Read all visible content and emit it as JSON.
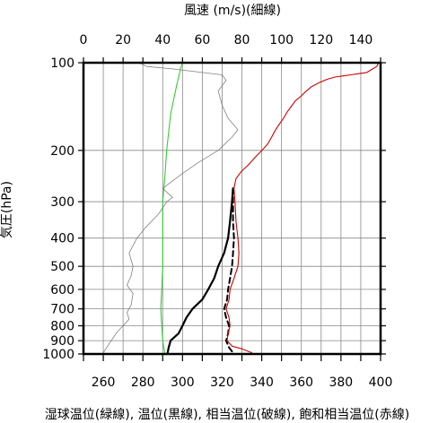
{
  "chart_data": {
    "type": "line",
    "title_top": "風速 (m/s)(細線)",
    "ylabel": "気圧(hPa)",
    "xlabel": "湿球温位(緑線), 温位(黒線), 相当温位(破線), 飽和相当温位(赤線)",
    "x_top_ticks": [
      "0",
      "20",
      "40",
      "60",
      "80",
      "100",
      "120",
      "140"
    ],
    "x_bottom_ticks": [
      "260",
      "280",
      "300",
      "320",
      "340",
      "360",
      "380",
      "400"
    ],
    "y_tick_labels": [
      "100",
      "200",
      "300",
      "400",
      "500",
      "600",
      "700",
      "800",
      "900",
      "1000"
    ],
    "y_scale": "log",
    "ylim": [
      1000,
      100
    ],
    "xlim_bottom": [
      250,
      400
    ],
    "xlim_top": [
      0,
      150
    ],
    "grid": true,
    "series": [
      {
        "name": "湿球温位",
        "color": "#33cc33",
        "style": "solid",
        "axis": "bottom",
        "points": [
          [
            291,
            990
          ],
          [
            290,
            900
          ],
          [
            289.5,
            800
          ],
          [
            289,
            700
          ],
          [
            289.5,
            600
          ],
          [
            290,
            500
          ],
          [
            290,
            400
          ],
          [
            290,
            300
          ],
          [
            291,
            250
          ],
          [
            292,
            200
          ],
          [
            294,
            150
          ],
          [
            297,
            120
          ],
          [
            299,
            105
          ],
          [
            300,
            100
          ]
        ]
      },
      {
        "name": "温位",
        "color": "#000000",
        "style": "solid",
        "axis": "bottom",
        "points": [
          [
            292.5,
            990
          ],
          [
            293,
            950
          ],
          [
            294,
            900
          ],
          [
            298,
            850
          ],
          [
            300,
            800
          ],
          [
            302,
            750
          ],
          [
            305,
            700
          ],
          [
            310,
            650
          ],
          [
            313,
            600
          ],
          [
            316,
            550
          ],
          [
            318,
            500
          ],
          [
            321,
            450
          ],
          [
            323,
            400
          ],
          [
            324,
            350
          ],
          [
            325,
            300
          ],
          [
            325.5,
            270
          ]
        ]
      },
      {
        "name": "相当温位",
        "color": "#000000",
        "style": "dashed",
        "axis": "bottom",
        "points": [
          [
            325,
            980
          ],
          [
            323.5,
            950
          ],
          [
            322,
            900
          ],
          [
            323,
            850
          ],
          [
            323.5,
            800
          ],
          [
            322,
            750
          ],
          [
            321,
            700
          ],
          [
            322.5,
            650
          ],
          [
            323,
            600
          ],
          [
            324,
            550
          ],
          [
            325,
            500
          ],
          [
            325.5,
            450
          ],
          [
            326,
            400
          ],
          [
            325.5,
            350
          ],
          [
            325.5,
            300
          ],
          [
            325.5,
            270
          ]
        ]
      },
      {
        "name": "飽和相当温位",
        "color": "#cc0000",
        "style": "solid",
        "axis": "bottom",
        "points": [
          [
            335,
            990
          ],
          [
            330,
            960
          ],
          [
            325,
            940
          ],
          [
            322.5,
            900
          ],
          [
            323,
            850
          ],
          [
            324,
            800
          ],
          [
            323.5,
            750
          ],
          [
            322,
            700
          ],
          [
            323.5,
            650
          ],
          [
            324,
            600
          ],
          [
            326,
            550
          ],
          [
            328,
            500
          ],
          [
            328.5,
            450
          ],
          [
            328,
            400
          ],
          [
            327,
            350
          ],
          [
            326.5,
            300
          ],
          [
            326,
            270
          ],
          [
            327,
            250
          ],
          [
            330,
            235
          ],
          [
            333,
            225
          ],
          [
            337,
            210
          ],
          [
            341,
            197
          ],
          [
            343,
            190
          ],
          [
            345,
            180
          ],
          [
            347,
            170
          ],
          [
            349,
            162
          ],
          [
            351,
            155
          ],
          [
            353,
            147
          ],
          [
            355,
            141
          ],
          [
            357,
            135
          ],
          [
            360,
            130
          ],
          [
            362,
            126
          ],
          [
            365,
            121
          ],
          [
            369,
            117
          ],
          [
            373,
            114
          ],
          [
            377,
            112
          ],
          [
            381,
            111
          ],
          [
            385,
            110
          ],
          [
            389,
            109
          ],
          [
            393,
            108
          ],
          [
            396,
            105
          ],
          [
            398,
            103
          ],
          [
            399,
            100
          ]
        ]
      },
      {
        "name": "風速",
        "color": "#808080",
        "style": "thin",
        "axis": "top",
        "points": [
          [
            10,
            990
          ],
          [
            14,
            900
          ],
          [
            17,
            840
          ],
          [
            20,
            800
          ],
          [
            23,
            760
          ],
          [
            22,
            720
          ],
          [
            24,
            680
          ],
          [
            25,
            620
          ],
          [
            22,
            580
          ],
          [
            24,
            540
          ],
          [
            25,
            500
          ],
          [
            23,
            450
          ],
          [
            27,
            400
          ],
          [
            31,
            370
          ],
          [
            38,
            330
          ],
          [
            42,
            300
          ],
          [
            45,
            290
          ],
          [
            40,
            270
          ],
          [
            50,
            240
          ],
          [
            58,
            220
          ],
          [
            68,
            200
          ],
          [
            75,
            180
          ],
          [
            78,
            170
          ],
          [
            73,
            155
          ],
          [
            70,
            140
          ],
          [
            68,
            125
          ],
          [
            72,
            115
          ],
          [
            70,
            110
          ],
          [
            60,
            108
          ],
          [
            45,
            105
          ],
          [
            32,
            103
          ],
          [
            28,
            100
          ]
        ]
      }
    ]
  }
}
